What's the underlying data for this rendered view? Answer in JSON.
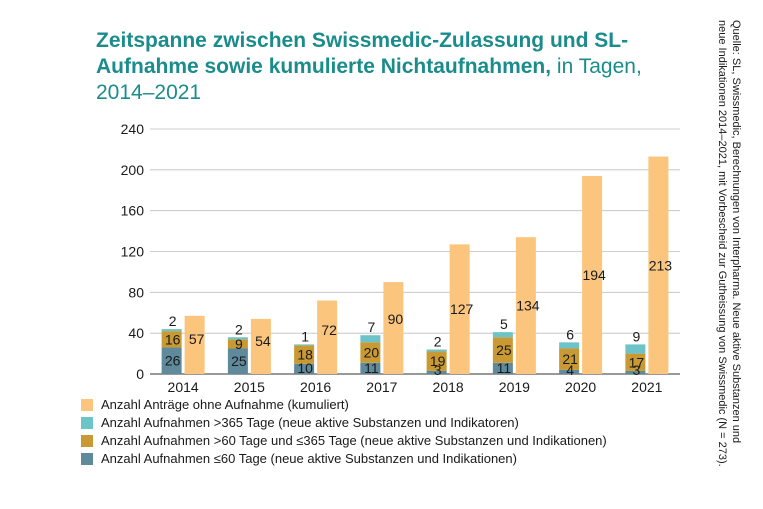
{
  "title": {
    "bold": "Zeitspanne zwischen Swissmedic-Zulassung und SL-Aufnahme sowie kumulierte Nichtaufnahmen,",
    "normal": " in Tagen, 2014–2021"
  },
  "source": "Quelle: SL, Swissmedic, Berechnungen von Interpharma. Neue aktive Substanzen und neue Indikationen 2014–2021, mit Vorbescheid zur Gutheissung von Swissmedic (N = 273).",
  "colors": {
    "kumuliert": "#fbc57d",
    "gt365": "#6cc4c9",
    "gt60": "#c99a33",
    "le60": "#5f8a9b",
    "title": "#1b8c8c"
  },
  "chart_data": {
    "type": "bar",
    "categories": [
      "2014",
      "2015",
      "2016",
      "2017",
      "2018",
      "2019",
      "2020",
      "2021"
    ],
    "ylim": [
      0,
      240
    ],
    "yticks": [
      "0",
      "40",
      "80",
      "120",
      "160",
      "200",
      "240"
    ],
    "stacked_series": [
      {
        "name": "Anzahl Aufnahmen ≤60 Tage (neue aktive Substanzen und Indikationen)",
        "values": [
          26,
          25,
          10,
          11,
          3,
          11,
          4,
          3
        ]
      },
      {
        "name": "Anzahl Aufnahmen >60 Tage und ≤365 Tage (neue aktive Substanzen und Indikationen)",
        "values": [
          16,
          9,
          18,
          20,
          19,
          25,
          21,
          17
        ]
      },
      {
        "name": "Anzahl Aufnahmen >365 Tage (neue aktive Substanzen und Indikatoren)",
        "values": [
          2,
          2,
          1,
          7,
          2,
          5,
          6,
          9
        ]
      }
    ],
    "cumulative_series": {
      "name": "Anzahl Anträge ohne Aufnahme (kumuliert)",
      "values": [
        57,
        54,
        72,
        90,
        127,
        134,
        194,
        213
      ]
    }
  },
  "legend": [
    {
      "key": "kumuliert",
      "label": "Anzahl Anträge ohne Aufnahme (kumuliert)"
    },
    {
      "key": "gt365",
      "label": "Anzahl Aufnahmen >365 Tage (neue aktive Substanzen und Indikatoren)"
    },
    {
      "key": "gt60",
      "label": "Anzahl Aufnahmen >60 Tage und ≤365 Tage (neue aktive Substanzen und Indikationen)"
    },
    {
      "key": "le60",
      "label": "Anzahl Aufnahmen ≤60 Tage (neue aktive Substanzen und Indikationen)"
    }
  ]
}
